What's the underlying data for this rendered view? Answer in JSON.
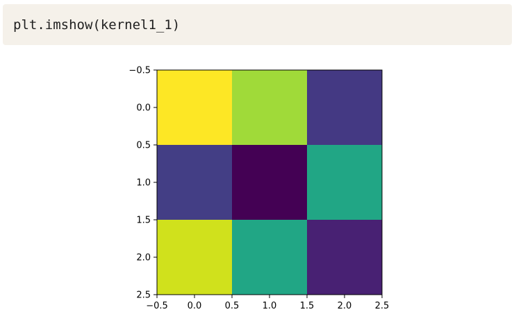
{
  "code_cell": {
    "source": "plt.imshow(kernel1_1)"
  },
  "chart_data": {
    "type": "heatmap",
    "title": "",
    "xlabel": "",
    "ylabel": "",
    "colormap": "viridis",
    "xlim": [
      -0.5,
      2.5
    ],
    "ylim": [
      2.5,
      -0.5
    ],
    "xticks": [
      "-0.5",
      "0.0",
      "0.5",
      "1.0",
      "1.5",
      "2.0",
      "2.5"
    ],
    "yticks": [
      "-0.5",
      "0.0",
      "0.5",
      "1.0",
      "1.5",
      "2.0",
      "2.5"
    ],
    "xtick_values": [
      -0.5,
      0.0,
      0.5,
      1.0,
      1.5,
      2.0,
      2.5
    ],
    "ytick_values": [
      -0.5,
      0.0,
      0.5,
      1.0,
      1.5,
      2.0,
      2.5
    ],
    "cells": [
      [
        "#fde725",
        "#a0da39",
        "#443983"
      ],
      [
        "#433e85",
        "#440154",
        "#21a685"
      ],
      [
        "#d0e11c",
        "#21a685",
        "#482173"
      ]
    ],
    "relative_values": [
      [
        1.0,
        0.78,
        0.15
      ],
      [
        0.14,
        0.0,
        0.55
      ],
      [
        0.95,
        0.55,
        0.07
      ]
    ]
  }
}
